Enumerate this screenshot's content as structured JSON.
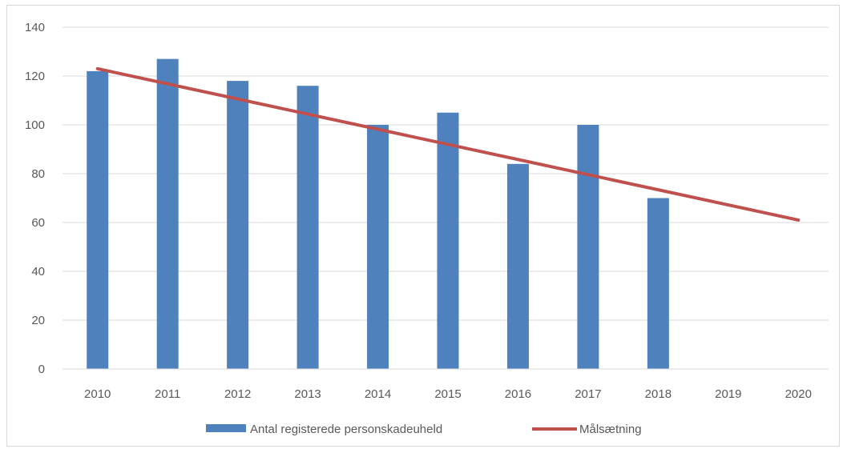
{
  "chart_data": {
    "type": "bar",
    "categories": [
      "2010",
      "2011",
      "2012",
      "2013",
      "2014",
      "2015",
      "2016",
      "2017",
      "2018",
      "2019",
      "2020"
    ],
    "series": [
      {
        "name": "Antal registerede personskadeuheld",
        "type": "bar",
        "color": "#4f81bd",
        "values": [
          122,
          127,
          118,
          116,
          100,
          105,
          84,
          100,
          70,
          null,
          null
        ]
      },
      {
        "name": "Målsætning",
        "type": "line",
        "color": "#c0504d",
        "points": [
          {
            "x": "2010",
            "y": 123
          },
          {
            "x": "2020",
            "y": 61
          }
        ]
      }
    ],
    "ylim": [
      0,
      140
    ],
    "yticks": [
      "0",
      "20",
      "40",
      "60",
      "80",
      "100",
      "120",
      "140"
    ],
    "grid": true,
    "legend": "bottom",
    "title": "",
    "xlabel": "",
    "ylabel": ""
  }
}
